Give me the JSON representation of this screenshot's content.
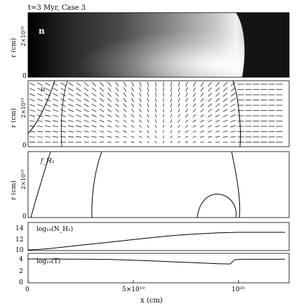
{
  "title": "t=3 Myr, Case 3",
  "panels": {
    "density": {
      "label": "n",
      "ylabel": "r (cm)",
      "yticks": [
        "0",
        "2×10¹⁹"
      ]
    },
    "velocity": {
      "label": "u",
      "ylabel": "r (cm)",
      "yticks": [
        "0",
        "2×10¹⁹"
      ]
    },
    "h2": {
      "label": "f_H₂",
      "ylabel": "r (cm)",
      "yticks": [
        "0",
        "2×10¹⁹"
      ]
    },
    "col": {
      "label": "log₁₀(N_H₂)",
      "yticks": [
        "10",
        "12",
        "14"
      ]
    },
    "temp": {
      "label": "log₁₀(T)",
      "yticks": [
        "0",
        "2",
        "4"
      ]
    }
  },
  "xaxis": {
    "label": "x (cm)",
    "ticks": [
      "0",
      "5×10¹⁹",
      "10²⁰"
    ]
  },
  "chart_data": [
    {
      "type": "line",
      "name": "log10(N_H2)",
      "x": [
        0,
        0.5,
        1,
        1.5,
        2,
        2.5,
        3,
        3.5,
        4,
        4.5,
        5,
        5.5,
        6,
        6.5,
        7,
        7.5,
        8,
        8.5,
        9,
        9.5,
        10,
        11,
        12.2
      ],
      "y": [
        10.1,
        10.2,
        10.35,
        10.55,
        10.75,
        10.95,
        11.15,
        11.35,
        11.55,
        11.75,
        11.95,
        12.15,
        12.35,
        12.55,
        12.7,
        12.85,
        12.95,
        13.05,
        13.15,
        13.2,
        13.25,
        13.25,
        13.25
      ],
      "xunit": "1e19 cm",
      "ylim": [
        10,
        15
      ]
    },
    {
      "type": "line",
      "name": "log10(T)",
      "x": [
        0,
        1,
        2,
        3,
        4,
        5,
        6,
        7,
        8,
        9,
        9.6,
        9.8,
        10.1,
        11,
        12.2
      ],
      "y": [
        4.05,
        4.05,
        4.02,
        4.0,
        3.95,
        3.85,
        3.7,
        3.55,
        3.4,
        3.25,
        3.2,
        3.9,
        4.0,
        4.0,
        4.0
      ],
      "xunit": "1e19 cm",
      "ylim": [
        0,
        5
      ]
    }
  ]
}
